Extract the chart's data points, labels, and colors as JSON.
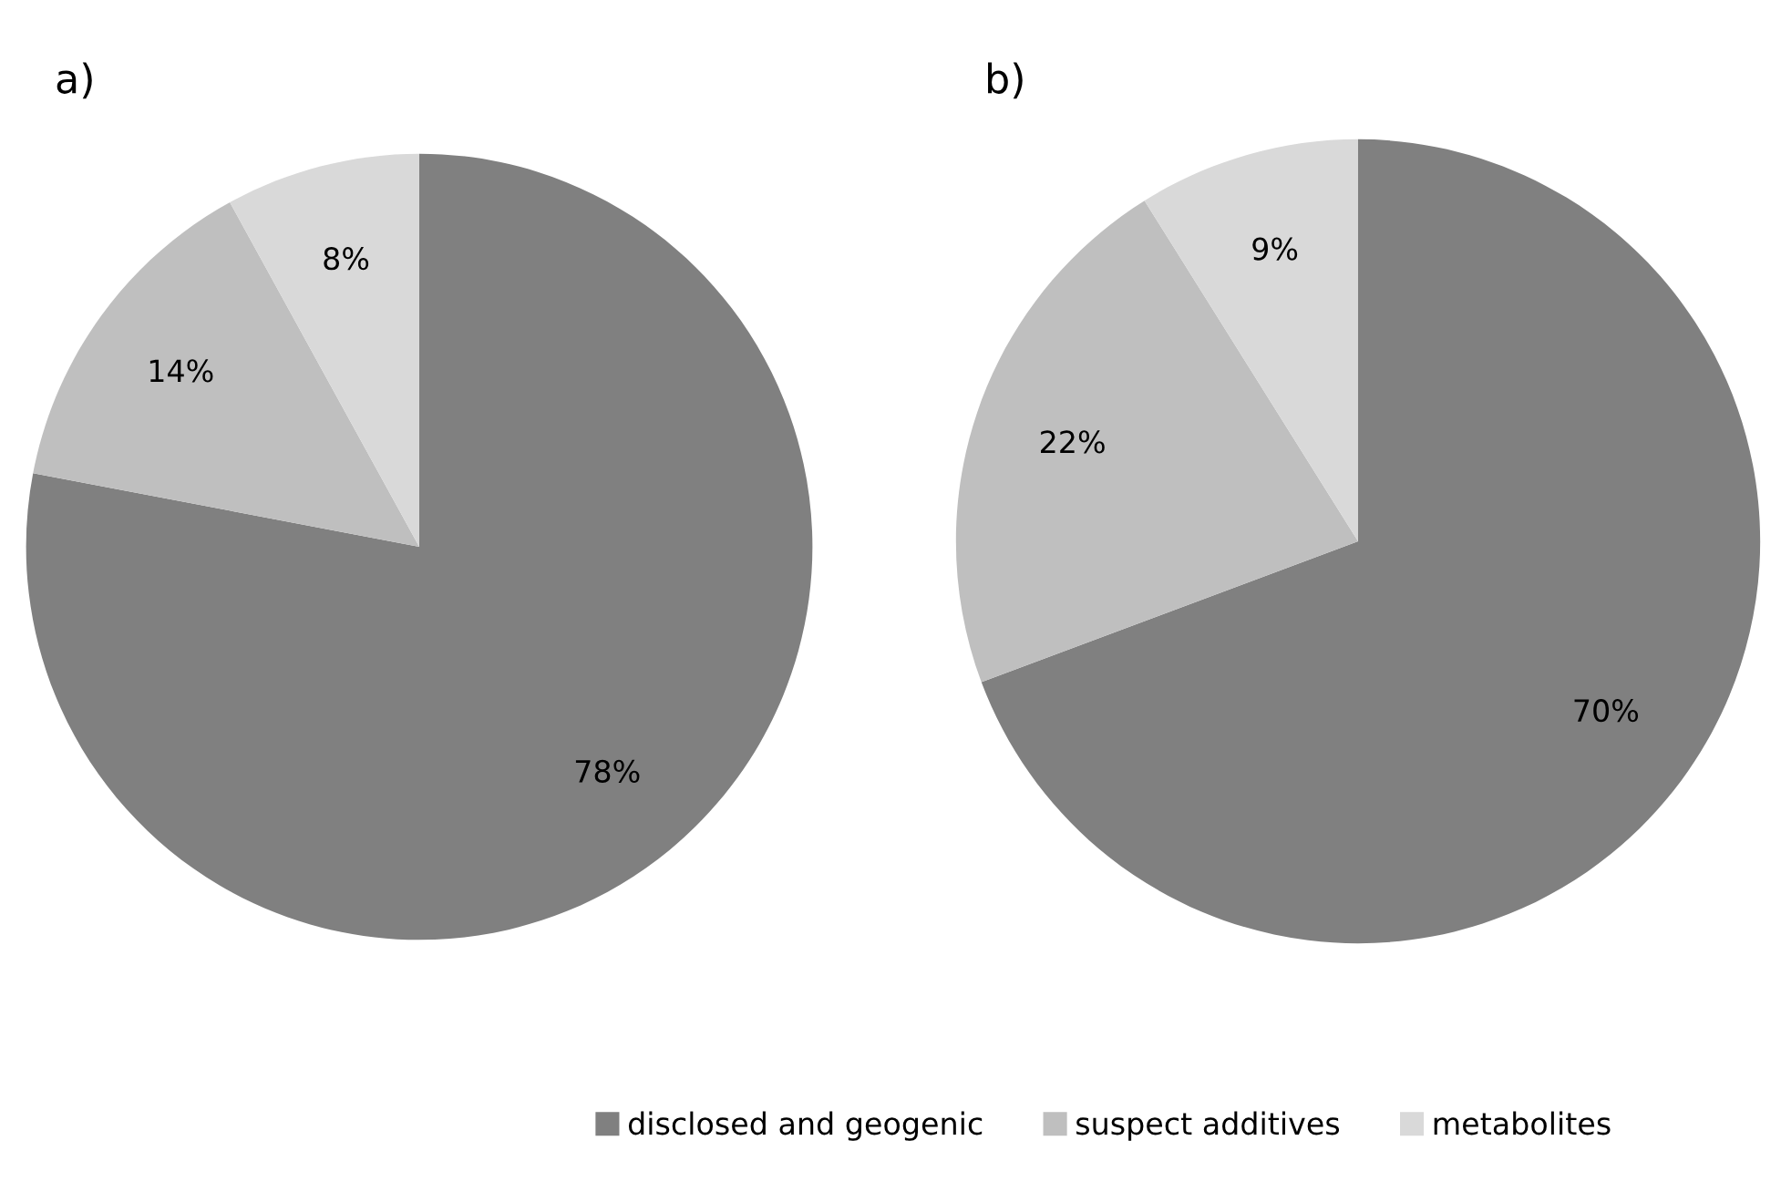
{
  "chart_data": [
    {
      "type": "pie",
      "title": "a)",
      "categories": [
        "disclosed and geogenic",
        "suspect additives",
        "metabolites"
      ],
      "values": [
        78,
        14,
        8
      ],
      "value_labels": [
        "78%",
        "14%",
        "8%"
      ],
      "colors": [
        "#808080",
        "#bfbfbf",
        "#d9d9d9"
      ],
      "legend": "bottom"
    },
    {
      "type": "pie",
      "title": "b)",
      "categories": [
        null,
        null,
        null
      ],
      "values": [
        70,
        22,
        9
      ],
      "value_labels": [
        "70%",
        "22%",
        "9%"
      ],
      "colors": [
        "#808080",
        "#bfbfbf",
        "#d9d9d9"
      ]
    }
  ]
}
